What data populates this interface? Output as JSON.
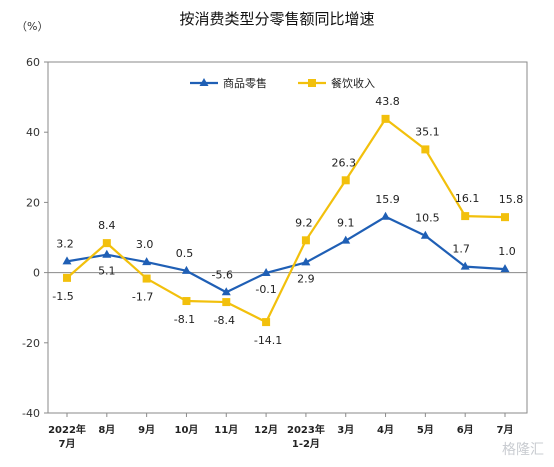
{
  "chart_data": {
    "type": "line",
    "title": "按消费类型分零售额同比增速",
    "y_unit": "（%）",
    "xlabel": "",
    "ylabel": "",
    "categories": [
      "2022年\n7月",
      "8月",
      "9月",
      "10月",
      "11月",
      "12月",
      "2023年\n1-2月",
      "3月",
      "4月",
      "5月",
      "6月",
      "7月"
    ],
    "ylim": [
      -40,
      60
    ],
    "yticks": [
      -40,
      -20,
      0,
      20,
      40,
      60
    ],
    "grid": false,
    "legend_position": "top-center",
    "series": [
      {
        "name": "商品零售",
        "color": "#1f5fb5",
        "values": [
          3.2,
          5.1,
          3.0,
          0.5,
          -5.6,
          -0.1,
          2.9,
          9.1,
          15.9,
          10.5,
          1.7,
          1.0
        ],
        "labels": [
          "3.2",
          "5.1",
          "3.0",
          "0.5",
          "-5.6",
          "-0.1",
          "2.9",
          "9.1",
          "15.9",
          "10.5",
          "1.7",
          "1.0"
        ]
      },
      {
        "name": "餐饮收入",
        "color": "#f2c00c",
        "values": [
          -1.5,
          8.4,
          -1.7,
          -8.1,
          -8.4,
          -14.1,
          9.2,
          26.3,
          43.8,
          35.1,
          16.1,
          15.8
        ],
        "labels": [
          "-1.5",
          "8.4",
          "-1.7",
          "-8.1",
          "-8.4",
          "-14.1",
          "9.2",
          "26.3",
          "43.8",
          "35.1",
          "16.1",
          "15.8"
        ]
      }
    ]
  },
  "watermark": "格隆汇"
}
